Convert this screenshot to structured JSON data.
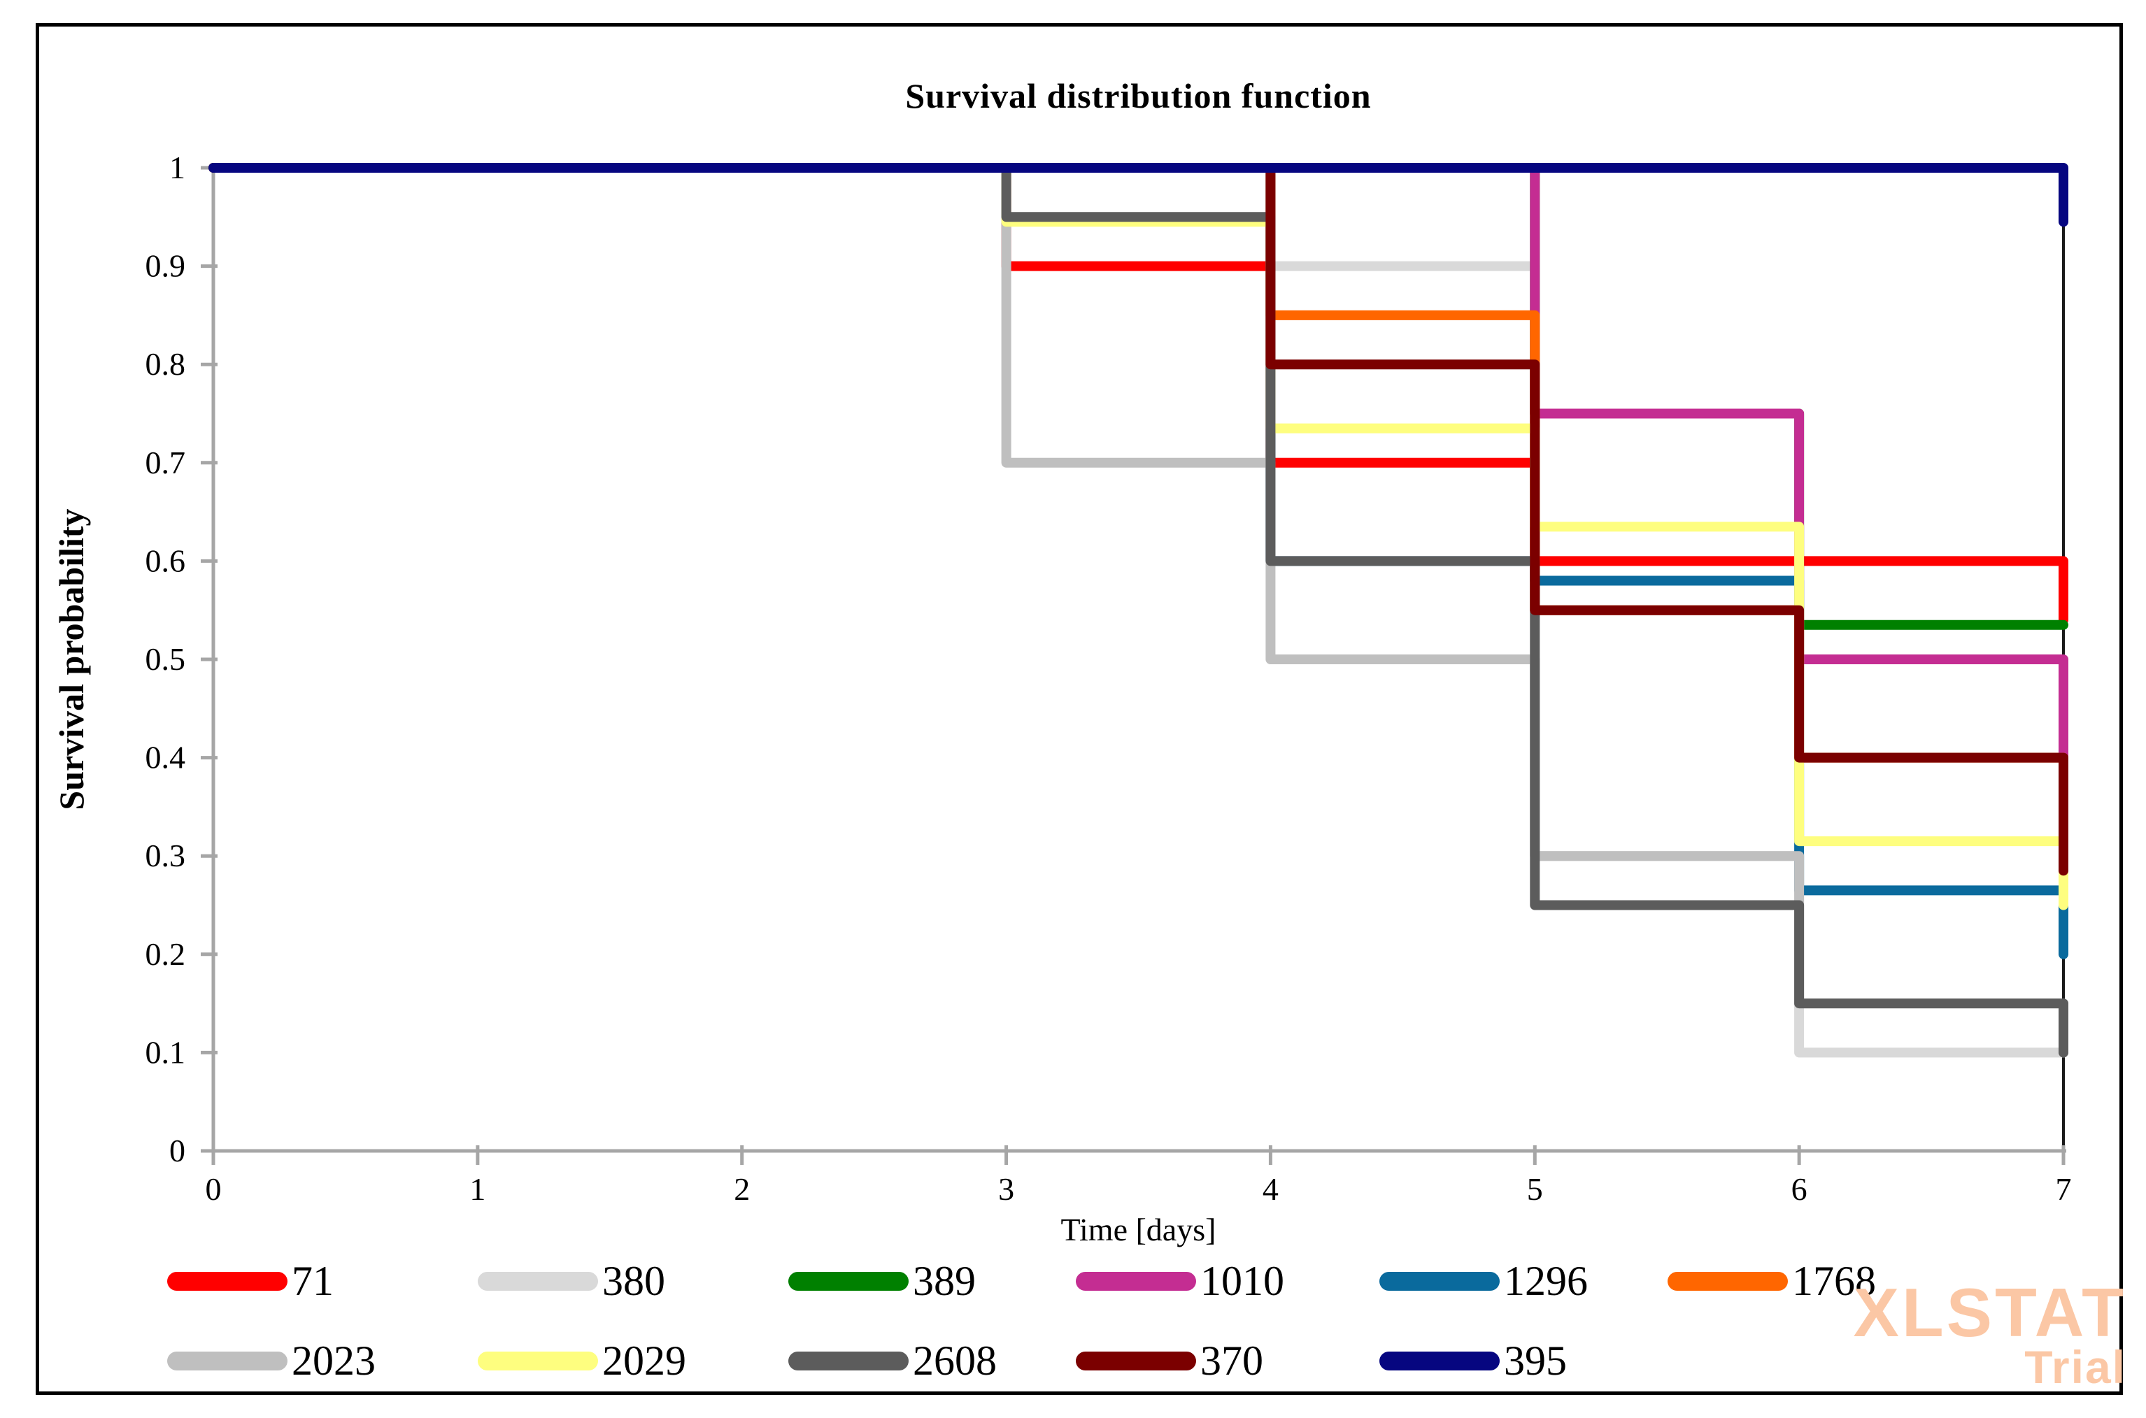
{
  "title": "Survival distribution function",
  "watermark": {
    "line1": "XLSTAT",
    "line2": "Trial"
  },
  "chart_data": {
    "type": "line",
    "subtype": "kaplan-meier-step",
    "title": "Survival distribution function",
    "xlabel": "Time [days]",
    "ylabel": "Survival probability",
    "xlim": [
      0,
      7
    ],
    "ylim": [
      0,
      1
    ],
    "x_ticks": [
      "0",
      "1",
      "2",
      "3",
      "4",
      "5",
      "6",
      "7"
    ],
    "y_ticks": [
      "0",
      "0.1",
      "0.2",
      "0.3",
      "0.4",
      "0.5",
      "0.6",
      "0.7",
      "0.8",
      "0.9",
      "1"
    ],
    "grid": false,
    "legend_position": "bottom",
    "axis_color": "#A6A6A6",
    "frame_color": "#1a1a1a",
    "line_width": 14,
    "series": [
      {
        "name": "71",
        "color": "#FF0000",
        "points": [
          [
            0,
            1
          ],
          [
            3,
            1
          ],
          [
            3,
            0.9
          ],
          [
            4,
            0.9
          ],
          [
            4,
            0.7
          ],
          [
            5,
            0.7
          ],
          [
            5,
            0.6
          ],
          [
            7,
            0.6
          ],
          [
            7,
            0.54
          ]
        ]
      },
      {
        "name": "380",
        "color": "#D9D9D9",
        "points": [
          [
            0,
            1
          ],
          [
            4,
            1
          ],
          [
            4,
            0.9
          ],
          [
            5,
            0.9
          ],
          [
            5,
            0.3
          ],
          [
            6,
            0.3
          ],
          [
            6,
            0.1
          ],
          [
            7,
            0.1
          ]
        ]
      },
      {
        "name": "389",
        "color": "#008000",
        "points": [
          [
            0,
            1
          ],
          [
            5,
            1
          ],
          [
            5,
            0.75
          ],
          [
            6,
            0.75
          ],
          [
            6,
            0.535
          ],
          [
            7,
            0.535
          ]
        ]
      },
      {
        "name": "1010",
        "color": "#C42D92",
        "points": [
          [
            0,
            1
          ],
          [
            5,
            1
          ],
          [
            5,
            0.75
          ],
          [
            6,
            0.75
          ],
          [
            6,
            0.5
          ],
          [
            7,
            0.5
          ],
          [
            7,
            0.4
          ]
        ]
      },
      {
        "name": "1296",
        "color": "#0A6A9D",
        "points": [
          [
            0,
            1
          ],
          [
            4,
            1
          ],
          [
            4,
            0.6
          ],
          [
            5,
            0.6
          ],
          [
            5,
            0.58
          ],
          [
            6,
            0.58
          ],
          [
            6,
            0.265
          ],
          [
            7,
            0.265
          ],
          [
            7,
            0.2
          ]
        ]
      },
      {
        "name": "1768",
        "color": "#FF6600",
        "points": [
          [
            0,
            1
          ],
          [
            4,
            1
          ],
          [
            4,
            0.85
          ],
          [
            5,
            0.85
          ],
          [
            5,
            0.55
          ],
          [
            6,
            0.55
          ],
          [
            6,
            0.4
          ],
          [
            7,
            0.4
          ],
          [
            7,
            0.285
          ]
        ]
      },
      {
        "name": "2023",
        "color": "#BFBFBF",
        "points": [
          [
            0,
            1
          ],
          [
            3,
            1
          ],
          [
            3,
            0.7
          ],
          [
            4,
            0.7
          ],
          [
            4,
            0.5
          ],
          [
            5,
            0.5
          ],
          [
            5,
            0.3
          ],
          [
            6,
            0.3
          ],
          [
            6,
            0.15
          ],
          [
            7,
            0.15
          ],
          [
            7,
            0.1
          ]
        ]
      },
      {
        "name": "2029",
        "color": "#FEFE7F",
        "points": [
          [
            0,
            1
          ],
          [
            3,
            1
          ],
          [
            3,
            0.945
          ],
          [
            4,
            0.945
          ],
          [
            4,
            0.735
          ],
          [
            5,
            0.735
          ],
          [
            5,
            0.635
          ],
          [
            6,
            0.635
          ],
          [
            6,
            0.315
          ],
          [
            7,
            0.315
          ],
          [
            7,
            0.25
          ]
        ]
      },
      {
        "name": "2608",
        "color": "#5C5C5C",
        "points": [
          [
            0,
            1
          ],
          [
            3,
            1
          ],
          [
            3,
            0.95
          ],
          [
            4,
            0.95
          ],
          [
            4,
            0.6
          ],
          [
            5,
            0.6
          ],
          [
            5,
            0.25
          ],
          [
            6,
            0.25
          ],
          [
            6,
            0.15
          ],
          [
            7,
            0.15
          ],
          [
            7,
            0.1
          ]
        ]
      },
      {
        "name": "370",
        "color": "#7B0000",
        "points": [
          [
            0,
            1
          ],
          [
            4,
            1
          ],
          [
            4,
            0.8
          ],
          [
            5,
            0.8
          ],
          [
            5,
            0.55
          ],
          [
            6,
            0.55
          ],
          [
            6,
            0.4
          ],
          [
            7,
            0.4
          ],
          [
            7,
            0.285
          ]
        ]
      },
      {
        "name": "395",
        "color": "#060680",
        "points": [
          [
            0,
            1
          ],
          [
            7,
            1
          ],
          [
            7,
            0.945
          ]
        ]
      }
    ]
  }
}
